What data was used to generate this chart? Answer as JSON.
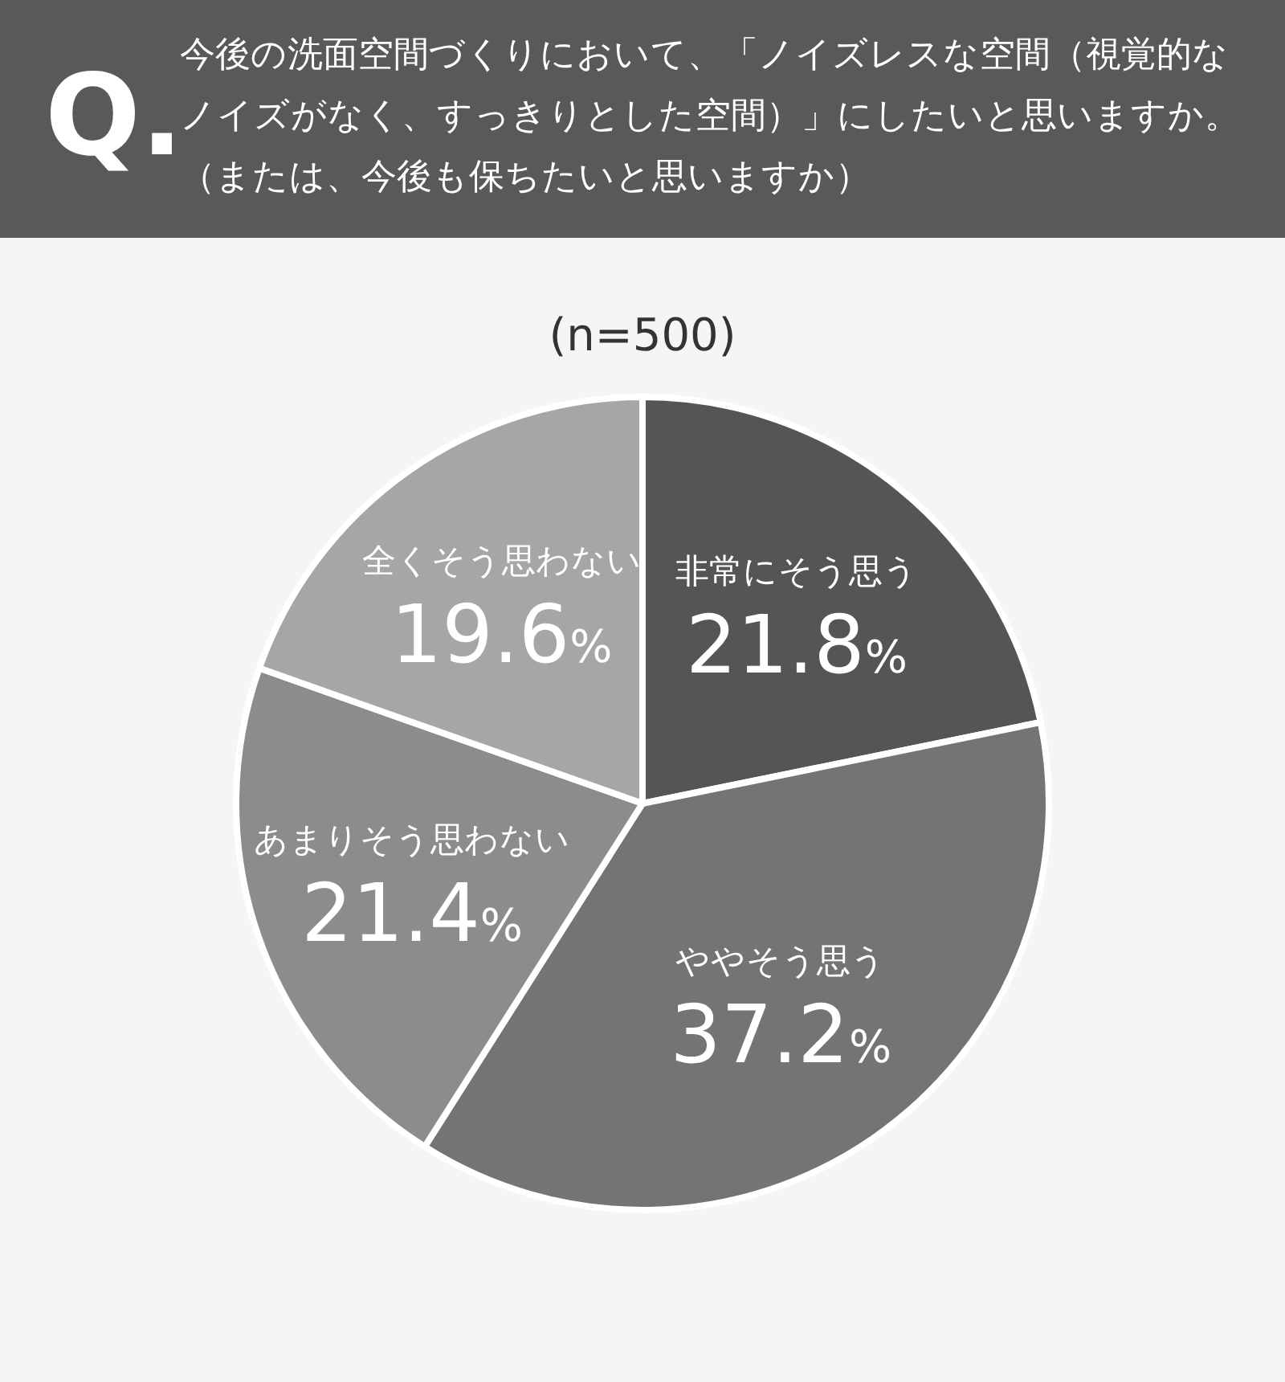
{
  "chart_data": {
    "type": "pie",
    "title": "今後の洗面空間づくりにおいて、「ノイズレスな空間（視覚的なノイズがなく、すっきりとした空間）」にしたいと思いますか。（または、今後も保ちたいと思いますか）",
    "subtitle": "(n=500)",
    "annotations": [
      "Q."
    ],
    "categories": [
      "非常にそう思う",
      "ややそう思う",
      "あまりそう思わない",
      "全くそう思わない"
    ],
    "values": [
      21.8,
      37.2,
      21.4,
      19.6
    ],
    "value_labels": [
      "21.8%",
      "37.2%",
      "21.4%",
      "19.6%"
    ],
    "colors": [
      "#555555",
      "#747474",
      "#8c8c8c",
      "#a6a6a6"
    ]
  }
}
